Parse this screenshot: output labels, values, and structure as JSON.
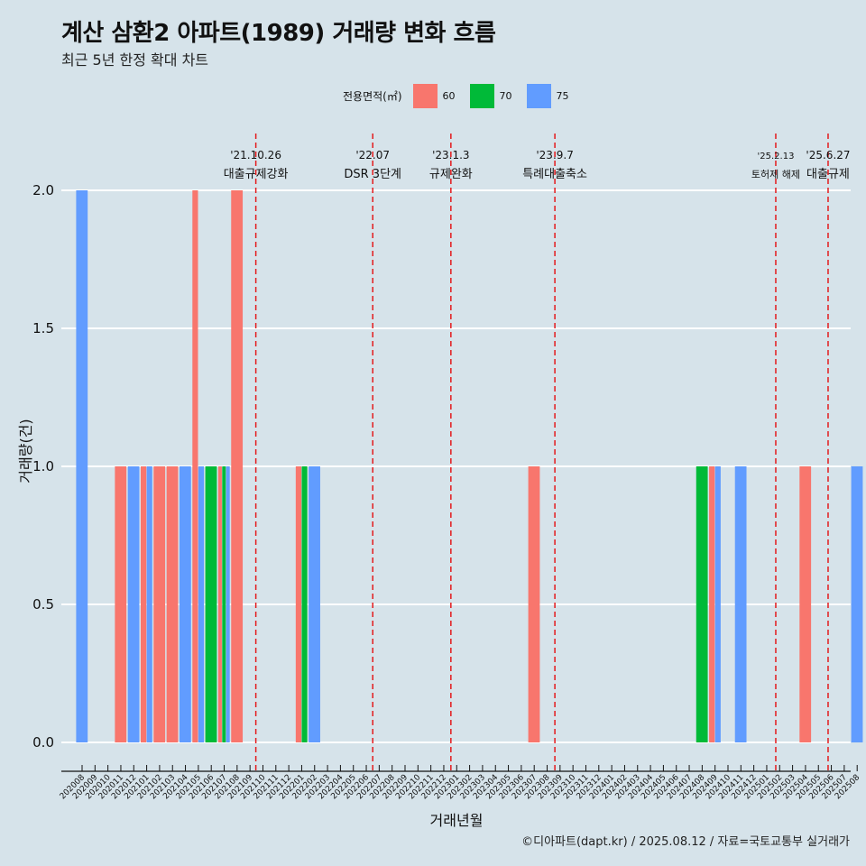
{
  "title": "계산 삼환2 아파트(1989) 거래량 변화 흐름",
  "subtitle": "최근 5년 한정 확대 차트",
  "caption": "©디아파트(dapt.kr) / 2025.08.12 / 자료=국토교통부 실거래가",
  "legend": {
    "title": "전용면적(㎡)",
    "items": [
      {
        "label": "60",
        "color": "#f8766d"
      },
      {
        "label": "70",
        "color": "#00ba38"
      },
      {
        "label": "75",
        "color": "#619cff"
      }
    ]
  },
  "chart_data": {
    "type": "bar",
    "xlabel": "거래년월",
    "ylabel": "거래량(건)",
    "ylim": [
      0,
      2.1
    ],
    "yticks": [
      "0.0",
      "0.5",
      "1.0",
      "1.5",
      "2.0"
    ],
    "grid": true,
    "categories": [
      "202008",
      "202009",
      "202010",
      "202011",
      "202012",
      "202101",
      "202102",
      "202103",
      "202104",
      "202105",
      "202106",
      "202107",
      "202108",
      "202109",
      "202110",
      "202111",
      "202112",
      "202201",
      "202202",
      "202203",
      "202204",
      "202205",
      "202206",
      "202207",
      "202208",
      "202209",
      "202210",
      "202211",
      "202212",
      "202301",
      "202302",
      "202303",
      "202304",
      "202305",
      "202306",
      "202307",
      "202308",
      "202309",
      "202310",
      "202311",
      "202312",
      "202401",
      "202402",
      "202403",
      "202404",
      "202405",
      "202406",
      "202407",
      "202408",
      "202409",
      "202410",
      "202411",
      "202412",
      "202501",
      "202502",
      "202503",
      "202504",
      "202505",
      "202506",
      "202507",
      "202508"
    ],
    "series": [
      {
        "name": "60",
        "color": "#f8766d",
        "values": [
          0,
          0,
          0,
          1,
          0,
          1,
          1,
          1,
          0,
          2,
          0,
          1,
          2,
          0,
          0,
          0,
          0,
          1,
          0,
          0,
          0,
          0,
          0,
          0,
          0,
          0,
          0,
          0,
          0,
          0,
          0,
          0,
          0,
          0,
          0,
          1,
          0,
          0,
          0,
          0,
          0,
          0,
          0,
          0,
          0,
          0,
          0,
          0,
          0,
          1,
          0,
          0,
          0,
          0,
          0,
          0,
          1,
          0,
          0,
          0,
          0
        ]
      },
      {
        "name": "70",
        "color": "#00ba38",
        "values": [
          0,
          0,
          0,
          0,
          0,
          0,
          0,
          0,
          0,
          0,
          1,
          1,
          0,
          0,
          0,
          0,
          0,
          1,
          0,
          0,
          0,
          0,
          0,
          0,
          0,
          0,
          0,
          0,
          0,
          0,
          0,
          0,
          0,
          0,
          0,
          0,
          0,
          0,
          0,
          0,
          0,
          0,
          0,
          0,
          0,
          0,
          0,
          0,
          1,
          0,
          0,
          0,
          0,
          0,
          0,
          0,
          0,
          0,
          0,
          0,
          0
        ]
      },
      {
        "name": "75",
        "color": "#619cff",
        "values": [
          2,
          0,
          0,
          0,
          1,
          1,
          0,
          0,
          1,
          1,
          0,
          1,
          0,
          0,
          0,
          0,
          0,
          0,
          1,
          0,
          0,
          0,
          0,
          0,
          0,
          0,
          0,
          0,
          0,
          0,
          0,
          0,
          0,
          0,
          0,
          0,
          0,
          0,
          0,
          0,
          0,
          0,
          0,
          0,
          0,
          0,
          0,
          0,
          0,
          1,
          0,
          1,
          0,
          0,
          0,
          0,
          0,
          0,
          0,
          0,
          1
        ]
      }
    ],
    "annotations": [
      {
        "x": 13.45,
        "date": "'21.10.26",
        "text": "대출규제강화",
        "small": false
      },
      {
        "x": 22.5,
        "date": "'22.07",
        "text": "DSR 3단계",
        "small": false
      },
      {
        "x": 28.55,
        "date": "'23.1.3",
        "text": "규제완화",
        "small": false
      },
      {
        "x": 36.6,
        "date": "'23.9.7",
        "text": "특례대출축소",
        "small": false
      },
      {
        "x": 53.7,
        "date": "'25.2.13",
        "text": "토허제 해제",
        "small": true
      },
      {
        "x": 57.75,
        "date": "'25.6.27",
        "text": "대출규제",
        "small": false
      }
    ]
  }
}
